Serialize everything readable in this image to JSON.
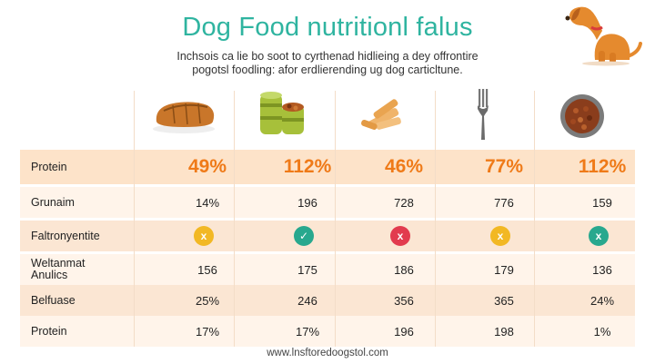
{
  "header": {
    "title": "Dog Food nutritionl falus",
    "subtitle_line1": "Inchsois ca lie bo soot to cyrthenad hidlieing a dey offrontire",
    "subtitle_line2": "pogotsl foodling: afor erdlierending ug dog carticltune."
  },
  "columns": [
    {
      "icon": "bread-loaf-icon"
    },
    {
      "icon": "stacked-cans-icon"
    },
    {
      "icon": "kibble-pieces-icon"
    },
    {
      "icon": "fork-icon"
    },
    {
      "icon": "food-bowl-icon"
    }
  ],
  "rows": [
    {
      "label": "Protein",
      "values": [
        "49%",
        "112%",
        "46%",
        "77%",
        "112%"
      ],
      "kind": "highlight"
    },
    {
      "label": "Grunaim",
      "values": [
        "14%",
        "196",
        "728",
        "776",
        "159"
      ],
      "kind": "text"
    },
    {
      "label": "Faltronyentite",
      "values": [
        "x",
        "✓",
        "x",
        "x",
        "x"
      ],
      "kind": "badge",
      "badge_colors": [
        "#f2b824",
        "#28a88e",
        "#e23b4e",
        "#f2b824",
        "#28a88e"
      ]
    },
    {
      "label": "Weltanmat\nAnulics",
      "values": [
        "156",
        "175",
        "186",
        "179",
        "136"
      ],
      "kind": "text"
    },
    {
      "label": "Belfuase",
      "values": [
        "25%",
        "246",
        "356",
        "365",
        "24%"
      ],
      "kind": "text"
    },
    {
      "label": "Protein",
      "values": [
        "17%",
        "17%",
        "196",
        "198",
        "1%"
      ],
      "kind": "text"
    }
  ],
  "footer": {
    "url": "www.lnsftoredoogstol.com"
  },
  "colors": {
    "title": "#2fb4a0",
    "highlight_value": "#ef7a18",
    "row_stripe": "#fbe6d3"
  }
}
